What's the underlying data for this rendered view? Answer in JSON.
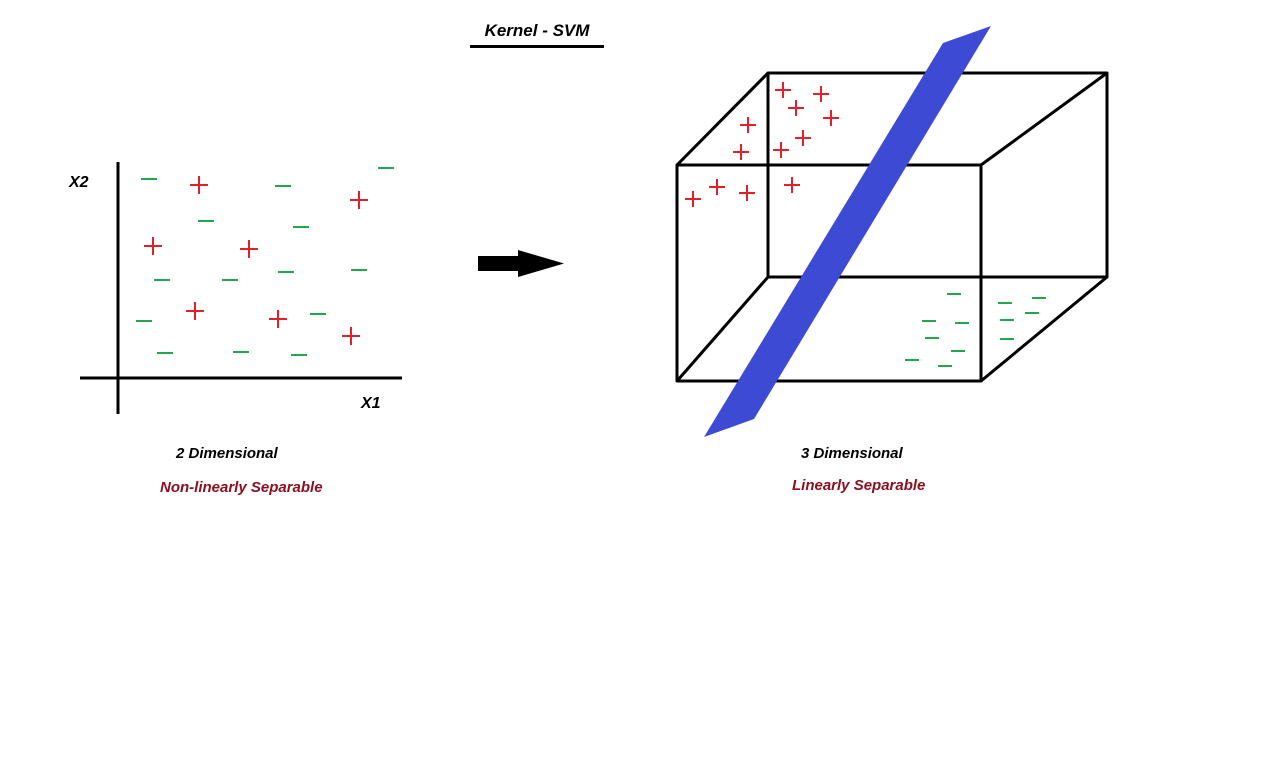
{
  "title": "Kernel - SVM",
  "left_panel": {
    "y_axis_label": "X2",
    "x_axis_label": "X1",
    "caption": "2 Dimensional",
    "subcaption": "Non-linearly Separable"
  },
  "right_panel": {
    "caption": "3 Dimensional",
    "subcaption": "Linearly Separable"
  },
  "colors": {
    "plus": "#e0202a",
    "minus": "#22a84a",
    "plane": "#3d4bd4",
    "subcaption": "#8b1020",
    "ink": "#000000"
  },
  "icons": [
    "right-arrow-icon"
  ]
}
